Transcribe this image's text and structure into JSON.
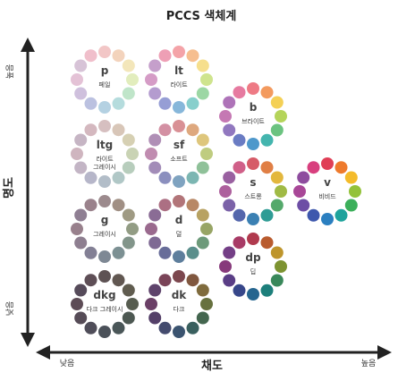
{
  "title": "PCCS 색체계",
  "axes": {
    "x": {
      "label": "채도",
      "low": "낮음",
      "high": "높음"
    },
    "y": {
      "label": "명도",
      "low": "낮음",
      "high": "높음"
    }
  },
  "tones": [
    {
      "code": "p",
      "name_lines": [
        "페일"
      ],
      "colors": [
        "#F2C6C6",
        "#F3D3BC",
        "#F3E6BA",
        "#E2EDBD",
        "#BFE5C9",
        "#B5DCDD",
        "#B4D1E2",
        "#BBC1E0",
        "#CFC0DD",
        "#E4C2D6",
        "#D7C3D7",
        "#F0BFCB"
      ]
    },
    {
      "code": "lt",
      "name_lines": [
        "라이트"
      ],
      "colors": [
        "#F4A3A8",
        "#F6BE8F",
        "#F6DF8D",
        "#CFE48E",
        "#9CD7A4",
        "#87CFCC",
        "#87B7DA",
        "#969ED5",
        "#B49CCF",
        "#D59CC6",
        "#C59FCB",
        "#EE9FB5"
      ]
    },
    {
      "code": "b",
      "name_lines": [
        "브라이트"
      ],
      "colors": [
        "#EE7A85",
        "#F39A5E",
        "#F4D055",
        "#B5D45A",
        "#6BC380",
        "#44B5AE",
        "#4E98CB",
        "#6A7CC3",
        "#9178BF",
        "#C578B3",
        "#AE73B8",
        "#E67AA0"
      ]
    },
    {
      "code": "ltg",
      "name_lines": [
        "라이트",
        "그레이시"
      ],
      "colors": [
        "#D6BFC0",
        "#D8C6B8",
        "#D6D0B3",
        "#C9D3B4",
        "#B7CDBC",
        "#B0C7C6",
        "#B2BDC8",
        "#B6B6C9",
        "#C3B5C5",
        "#CFB5BF",
        "#C6B5C4",
        "#D4B8BF"
      ]
    },
    {
      "code": "sf",
      "name_lines": [
        "소프트"
      ],
      "colors": [
        "#D99095",
        "#DEA87E",
        "#DEC67C",
        "#BFCC80",
        "#8FC199",
        "#7CB6B2",
        "#7FA3C0",
        "#8B8FBE",
        "#A28CB8",
        "#C08CB0",
        "#B08FB6",
        "#D390A3"
      ]
    },
    {
      "code": "s",
      "name_lines": [
        "스트롱"
      ],
      "colors": [
        "#D65B68",
        "#E07F45",
        "#E3B73D",
        "#A0BA45",
        "#54A96B",
        "#2F9C95",
        "#3B80B3",
        "#5466AC",
        "#7B62A8",
        "#AD609D",
        "#9960A0",
        "#D05F88"
      ]
    },
    {
      "code": "v",
      "name_lines": [
        "비비드"
      ],
      "colors": [
        "#E03E56",
        "#EE7A2C",
        "#F4BB2A",
        "#93C23A",
        "#3BAF5A",
        "#1EA39C",
        "#2B7FC0",
        "#3E58AD",
        "#6D4EA5",
        "#A84797",
        "#8E4C9E",
        "#D83F7E"
      ]
    },
    {
      "code": "g",
      "name_lines": [
        "그레이시"
      ],
      "colors": [
        "#9C8A8D",
        "#A08F84",
        "#9F9A83",
        "#929C84",
        "#82958A",
        "#7C9093",
        "#7E8894",
        "#838095",
        "#8E7F90",
        "#98808C",
        "#8F7F93",
        "#9A828C"
      ]
    },
    {
      "code": "d",
      "name_lines": [
        "덜"
      ],
      "colors": [
        "#B27579",
        "#B88866",
        "#B8A262",
        "#98A565",
        "#6D9A7A",
        "#5B8F8C",
        "#5E7E9C",
        "#686D99",
        "#7F6A94",
        "#9A6A8E",
        "#8A6C95",
        "#AC6F83"
      ]
    },
    {
      "code": "dp",
      "name_lines": [
        "딥"
      ],
      "colors": [
        "#B03A4E",
        "#B95B2E",
        "#BE952C",
        "#7D9331",
        "#39885A",
        "#1D7F7B",
        "#25658F",
        "#37478A",
        "#5A3E86",
        "#873A7B",
        "#743F86",
        "#A83B66"
      ]
    },
    {
      "code": "dkg",
      "name_lines": [
        "다크 그레이시"
      ],
      "colors": [
        "#5E5254",
        "#615751",
        "#605C4F",
        "#575D50",
        "#4D5852",
        "#4A5658",
        "#4B5159",
        "#4F4D59",
        "#564C57",
        "#5D4C56",
        "#564B5A",
        "#5E4E56"
      ]
    },
    {
      "code": "dk",
      "name_lines": [
        "다크"
      ],
      "colors": [
        "#7C474E",
        "#80573F",
        "#7F6B3D",
        "#67713F",
        "#44664F",
        "#3A605F",
        "#3B5470",
        "#444B6E",
        "#543F68",
        "#6B4067",
        "#5E436B",
        "#7A4458"
      ]
    }
  ]
}
